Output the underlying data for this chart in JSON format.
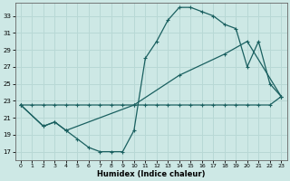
{
  "xlabel": "Humidex (Indice chaleur)",
  "bg_color": "#cde8e5",
  "grid_color": "#b8d8d5",
  "line_color": "#1a6060",
  "xlim": [
    -0.5,
    23.5
  ],
  "ylim": [
    16.0,
    34.5
  ],
  "xticks": [
    0,
    1,
    2,
    3,
    4,
    5,
    6,
    7,
    8,
    9,
    10,
    11,
    12,
    13,
    14,
    15,
    16,
    17,
    18,
    19,
    20,
    21,
    22,
    23
  ],
  "yticks": [
    17,
    19,
    21,
    23,
    25,
    27,
    29,
    31,
    33
  ],
  "line1_x": [
    0,
    2,
    3,
    4,
    10,
    14,
    18,
    20,
    23
  ],
  "line1_y": [
    22.5,
    20.0,
    20.5,
    19.5,
    22.5,
    26.0,
    28.5,
    30.0,
    23.5
  ],
  "line2_x": [
    0,
    2,
    3,
    4,
    5,
    6,
    7,
    8,
    9,
    10,
    11,
    12,
    13,
    14,
    15,
    16,
    17,
    18,
    19,
    20,
    21,
    22,
    23
  ],
  "line2_y": [
    22.5,
    20.0,
    20.5,
    19.5,
    18.5,
    17.5,
    17.0,
    17.0,
    17.0,
    19.5,
    28.0,
    30.0,
    32.5,
    34.0,
    34.0,
    33.5,
    33.0,
    32.0,
    31.5,
    27.0,
    30.0,
    25.0,
    23.5
  ],
  "line3_x": [
    0,
    1,
    2,
    3,
    4,
    5,
    6,
    7,
    8,
    9,
    10,
    11,
    12,
    13,
    14,
    15,
    16,
    17,
    18,
    19,
    20,
    21,
    22,
    23
  ],
  "line3_y": [
    22.5,
    22.5,
    22.5,
    22.5,
    22.5,
    22.5,
    22.5,
    22.5,
    22.5,
    22.5,
    22.5,
    22.5,
    22.5,
    22.5,
    22.5,
    22.5,
    22.5,
    22.5,
    22.5,
    22.5,
    22.5,
    22.5,
    22.5,
    23.5
  ]
}
